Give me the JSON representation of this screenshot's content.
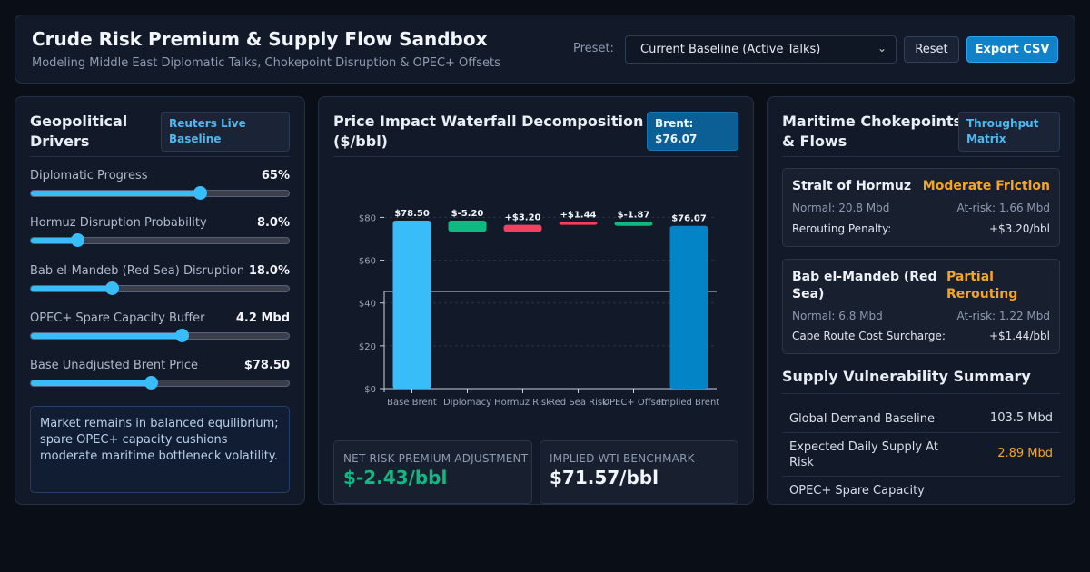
{
  "header": {
    "title": "Crude Risk Premium & Supply Flow Sandbox",
    "subtitle": "Modeling Middle East Diplomatic Talks, Chokepoint Disruption & OPEC+ Offsets",
    "preset_label": "Preset:",
    "preset_value": "Current Baseline (Active Talks)",
    "reset_label": "Reset",
    "export_label": "Export CSV"
  },
  "drivers": {
    "title_line1": "Geopolitical",
    "title_line2": "Drivers",
    "badge_line1": "Reuters Live",
    "badge_line2": "Baseline",
    "sliders": [
      {
        "label": "Diplomatic Progress",
        "value": "65%",
        "fraction": 0.65
      },
      {
        "label": "Hormuz Disruption Probability",
        "value": "8.0%",
        "fraction": 0.18
      },
      {
        "label": "Bab el-Mandeb (Red Sea) Disruption",
        "value": "18.0%",
        "fraction": 0.31
      },
      {
        "label": "OPEC+ Spare Capacity Buffer",
        "value": "4.2 Mbd",
        "fraction": 0.58
      },
      {
        "label": "Base Unadjusted Brent Price",
        "value": "$78.50",
        "fraction": 0.46
      }
    ],
    "note": "Market remains in balanced equilibrium; spare OPEC+ capacity cushions moderate maritime bottleneck volatility."
  },
  "waterfall": {
    "title_line1": "Price Impact Waterfall Decomposition",
    "title_line2": "($/bbl)",
    "badge_line1": "Brent:",
    "badge_line2": "$76.07",
    "net_label": "NET RISK PREMIUM ADJUSTMENT",
    "net_value": "$-2.43/bbl",
    "wti_label": "IMPLIED WTI BENCHMARK",
    "wti_value": "$71.57/bbl"
  },
  "chart_data": {
    "type": "bar",
    "subtype": "waterfall",
    "categories": [
      "Base Brent",
      "Diplomacy",
      "Hormuz Risk",
      "Red Sea Risk",
      "OPEC+ Offset",
      "Implied Brent"
    ],
    "values": [
      78.5,
      -5.2,
      3.2,
      1.44,
      -1.87,
      76.07
    ],
    "labels": [
      "$78.50",
      "$-5.20",
      "+$3.20",
      "+$1.44",
      "$-1.87",
      "$76.07"
    ],
    "kinds": [
      "total",
      "delta",
      "delta",
      "delta",
      "delta",
      "total"
    ],
    "colors": [
      "#38bdf8",
      "#10b981",
      "#f43f5e",
      "#f43f5e",
      "#10b981",
      "#0284c7"
    ],
    "yticks": [
      "$0",
      "$20",
      "$40",
      "$60",
      "$80"
    ],
    "ylim": [
      0,
      85
    ],
    "grid": true
  },
  "chokepoints": {
    "title_line1": "Maritime Chokepoints",
    "title_line2": "& Flows",
    "badge_line1": "Throughput",
    "badge_line2": "Matrix",
    "items": [
      {
        "name": "Strait of Hormuz",
        "status": "Moderate Friction",
        "normal": "Normal: 20.8 Mbd",
        "atrisk": "At-risk: 1.66 Mbd",
        "penalty_label": "Rerouting Penalty:",
        "penalty_value": "+$3.20/bbl"
      },
      {
        "name_line1": "Bab el-Mandeb (Red",
        "name_line2": "Sea)",
        "status_line1": "Partial",
        "status_line2": "Rerouting",
        "normal": "Normal: 6.8 Mbd",
        "atrisk": "At-risk: 1.22 Mbd",
        "penalty_label": "Cape Route Cost Surcharge:",
        "penalty_value": "+$1.44/bbl"
      }
    ]
  },
  "summary": {
    "title": "Supply Vulnerability Summary",
    "rows": [
      {
        "label": "Global Demand Baseline",
        "value": "103.5 Mbd"
      },
      {
        "label_line1": "Expected Daily Supply At",
        "label_line2": "Risk",
        "value": "2.89 Mbd"
      },
      {
        "label": "OPEC+ Spare Capacity",
        "value": ""
      }
    ]
  },
  "colors": {
    "accent": "#38bdf8",
    "positive": "#10b981",
    "negative": "#f43f5e",
    "warning": "#f5a524"
  }
}
